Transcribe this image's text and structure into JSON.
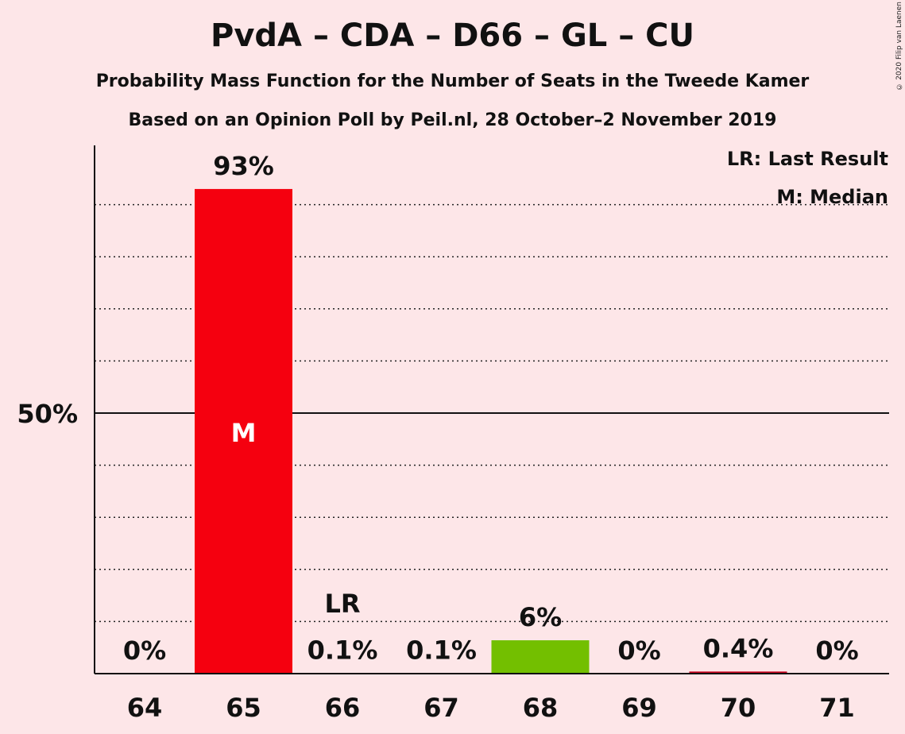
{
  "title": "PvdA – CDA – D66 – GL – CU",
  "subtitle": "Probability Mass Function for the Number of Seats in the Tweede Kamer",
  "subtitle2": "Based on an Opinion Poll by Peil.nl, 28 October–2 November 2019",
  "copyright": "© 2020 Filip van Laenen",
  "legend": {
    "last_result": "LR: Last Result",
    "median": "M: Median"
  },
  "chart_data": {
    "type": "bar",
    "categories": [
      "64",
      "65",
      "66",
      "67",
      "68",
      "69",
      "70",
      "71"
    ],
    "values": [
      0,
      93,
      0.1,
      0.1,
      6.4,
      0,
      0.4,
      0
    ],
    "value_labels": [
      "0%",
      "93%",
      "0.1%",
      "0.1%",
      "6%",
      "0%",
      "0.4%",
      "0%"
    ],
    "colors": [
      "#E4001B",
      "#F5000F",
      "#E4001B",
      "#E4001B",
      "#73BF00",
      "#E4001B",
      "#C4001B",
      "#E4001B"
    ],
    "ylim": [
      0,
      100
    ],
    "ytick_label": "50%",
    "ytick_value": 50,
    "gridlines": [
      10,
      20,
      30,
      40,
      60,
      70,
      80,
      90
    ],
    "median_index": 1,
    "median_label": "M",
    "last_result_index": 2,
    "last_result_label": "LR"
  }
}
